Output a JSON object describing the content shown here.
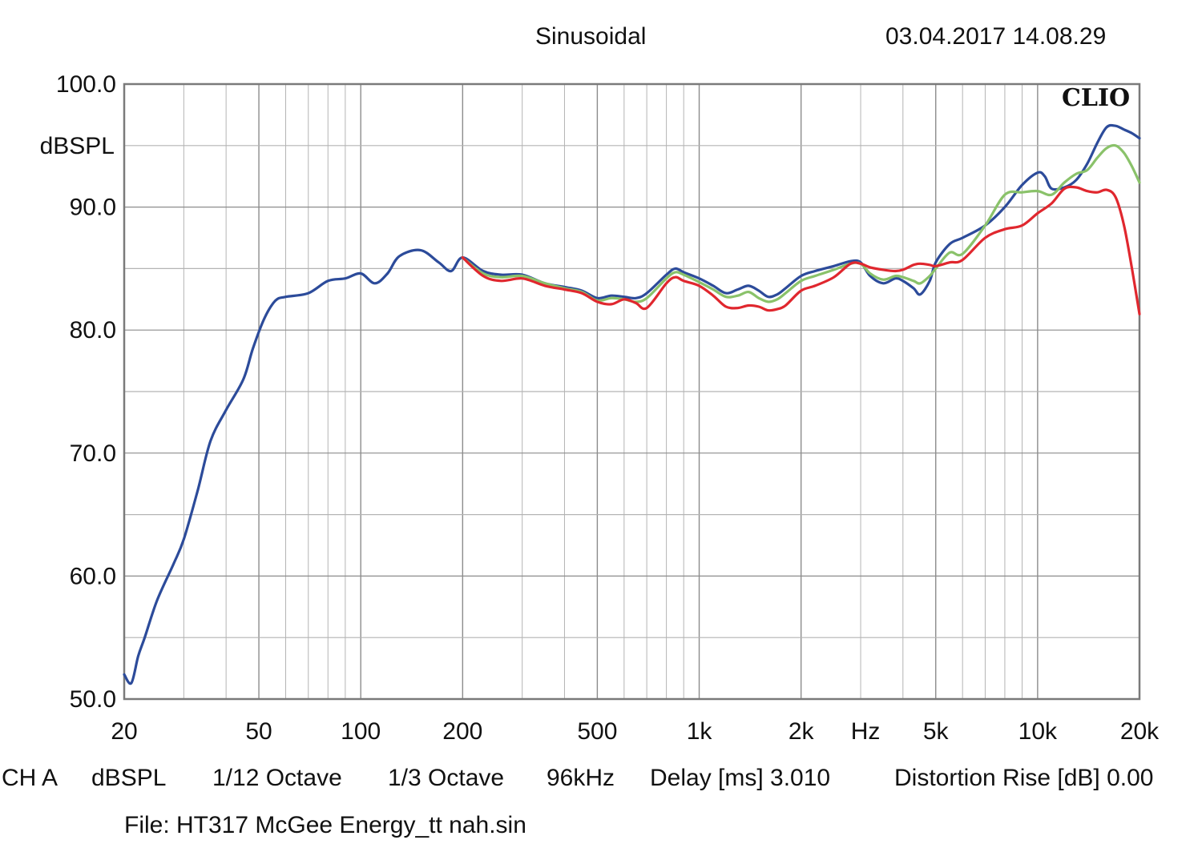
{
  "header": {
    "mode": "Sinusoidal",
    "timestamp": "03.04.2017 14.08.29",
    "brand": "CLIO"
  },
  "footer": {
    "channel": "CH A",
    "unit": "dBSPL",
    "resolution": "1/12 Octave",
    "smoothing": "1/3 Octave",
    "sample_rate": "96kHz",
    "delay": "Delay [ms] 3.010",
    "distortion": "Distortion Rise [dB] 0.00",
    "file": "File: HT317 McGee Energy_tt nah.sin"
  },
  "chart_data": {
    "type": "line",
    "title": "",
    "xlabel": "Hz",
    "ylabel": "dBSPL",
    "xscale": "log",
    "xlim": [
      20,
      20000
    ],
    "ylim": [
      50,
      100
    ],
    "x_ticks": [
      20,
      50,
      100,
      200,
      500,
      1000,
      2000,
      5000,
      10000,
      20000
    ],
    "x_tick_labels": [
      "20",
      "50",
      "100",
      "200",
      "500",
      "1k",
      "2k",
      "5k",
      "10k",
      "20k"
    ],
    "y_ticks": [
      50,
      60,
      70,
      80,
      90,
      100
    ],
    "y_tick_labels": [
      "50.0",
      "60.0",
      "70.0",
      "80.0",
      "90.0",
      "100.0"
    ],
    "grid": true,
    "legend": "none",
    "series": [
      {
        "color": "#2c4b9a",
        "points": [
          [
            20,
            52.0
          ],
          [
            21,
            51.3
          ],
          [
            22,
            53.5
          ],
          [
            23,
            55.0
          ],
          [
            25,
            58.0
          ],
          [
            28,
            61.0
          ],
          [
            30,
            63.0
          ],
          [
            33,
            67.0
          ],
          [
            36,
            71.0
          ],
          [
            40,
            73.5
          ],
          [
            45,
            76.0
          ],
          [
            48,
            78.5
          ],
          [
            52,
            81.0
          ],
          [
            56,
            82.4
          ],
          [
            60,
            82.7
          ],
          [
            70,
            83.0
          ],
          [
            80,
            84.0
          ],
          [
            90,
            84.2
          ],
          [
            100,
            84.6
          ],
          [
            110,
            83.8
          ],
          [
            120,
            84.6
          ],
          [
            130,
            86.0
          ],
          [
            150,
            86.5
          ],
          [
            170,
            85.5
          ],
          [
            185,
            84.8
          ],
          [
            200,
            85.9
          ],
          [
            230,
            84.8
          ],
          [
            260,
            84.5
          ],
          [
            300,
            84.5
          ],
          [
            350,
            83.8
          ],
          [
            400,
            83.5
          ],
          [
            450,
            83.2
          ],
          [
            500,
            82.6
          ],
          [
            550,
            82.8
          ],
          [
            600,
            82.7
          ],
          [
            650,
            82.6
          ],
          [
            700,
            83.0
          ],
          [
            800,
            84.5
          ],
          [
            850,
            85.0
          ],
          [
            900,
            84.7
          ],
          [
            1000,
            84.2
          ],
          [
            1100,
            83.6
          ],
          [
            1200,
            83.0
          ],
          [
            1300,
            83.3
          ],
          [
            1400,
            83.6
          ],
          [
            1500,
            83.2
          ],
          [
            1600,
            82.7
          ],
          [
            1700,
            82.9
          ],
          [
            1800,
            83.4
          ],
          [
            2000,
            84.4
          ],
          [
            2200,
            84.8
          ],
          [
            2500,
            85.2
          ],
          [
            2800,
            85.6
          ],
          [
            3000,
            85.5
          ],
          [
            3200,
            84.4
          ],
          [
            3500,
            83.8
          ],
          [
            3800,
            84.2
          ],
          [
            4000,
            84.0
          ],
          [
            4300,
            83.4
          ],
          [
            4500,
            82.9
          ],
          [
            4800,
            84.0
          ],
          [
            5000,
            85.5
          ],
          [
            5500,
            87.0
          ],
          [
            6000,
            87.5
          ],
          [
            7000,
            88.5
          ],
          [
            8000,
            90.0
          ],
          [
            9000,
            91.8
          ],
          [
            10000,
            92.8
          ],
          [
            10500,
            92.5
          ],
          [
            11000,
            91.5
          ],
          [
            12000,
            91.6
          ],
          [
            13000,
            92.2
          ],
          [
            14000,
            93.5
          ],
          [
            15000,
            95.2
          ],
          [
            16000,
            96.5
          ],
          [
            17000,
            96.6
          ],
          [
            18000,
            96.3
          ],
          [
            19000,
            96.0
          ],
          [
            20000,
            95.6
          ]
        ]
      },
      {
        "color": "#8ac26a",
        "points": [
          [
            200,
            85.9
          ],
          [
            230,
            84.6
          ],
          [
            260,
            84.3
          ],
          [
            300,
            84.4
          ],
          [
            350,
            83.8
          ],
          [
            400,
            83.4
          ],
          [
            450,
            83.1
          ],
          [
            500,
            82.4
          ],
          [
            550,
            82.6
          ],
          [
            600,
            82.5
          ],
          [
            650,
            82.3
          ],
          [
            700,
            82.6
          ],
          [
            800,
            84.2
          ],
          [
            850,
            84.7
          ],
          [
            900,
            84.5
          ],
          [
            1000,
            83.9
          ],
          [
            1100,
            83.3
          ],
          [
            1200,
            82.7
          ],
          [
            1300,
            82.8
          ],
          [
            1400,
            83.1
          ],
          [
            1500,
            82.6
          ],
          [
            1600,
            82.3
          ],
          [
            1700,
            82.5
          ],
          [
            1800,
            83.0
          ],
          [
            2000,
            84.0
          ],
          [
            2200,
            84.4
          ],
          [
            2500,
            84.9
          ],
          [
            2800,
            85.4
          ],
          [
            3000,
            85.4
          ],
          [
            3200,
            84.6
          ],
          [
            3500,
            84.1
          ],
          [
            3800,
            84.4
          ],
          [
            4000,
            84.3
          ],
          [
            4300,
            84.0
          ],
          [
            4500,
            83.8
          ],
          [
            4800,
            84.4
          ],
          [
            5000,
            85.0
          ],
          [
            5500,
            86.3
          ],
          [
            6000,
            86.2
          ],
          [
            7000,
            88.5
          ],
          [
            8000,
            91.0
          ],
          [
            9000,
            91.2
          ],
          [
            10000,
            91.3
          ],
          [
            11000,
            91.0
          ],
          [
            12000,
            92.0
          ],
          [
            13000,
            92.7
          ],
          [
            14000,
            93.0
          ],
          [
            15000,
            94.0
          ],
          [
            16000,
            94.8
          ],
          [
            17000,
            95.0
          ],
          [
            18000,
            94.4
          ],
          [
            19000,
            93.3
          ],
          [
            20000,
            92.0
          ]
        ]
      },
      {
        "color": "#e0272e",
        "points": [
          [
            200,
            85.9
          ],
          [
            230,
            84.4
          ],
          [
            260,
            84.0
          ],
          [
            300,
            84.2
          ],
          [
            350,
            83.6
          ],
          [
            400,
            83.3
          ],
          [
            450,
            83.0
          ],
          [
            500,
            82.3
          ],
          [
            550,
            82.1
          ],
          [
            600,
            82.5
          ],
          [
            650,
            82.2
          ],
          [
            700,
            81.8
          ],
          [
            800,
            83.8
          ],
          [
            850,
            84.3
          ],
          [
            900,
            84.0
          ],
          [
            1000,
            83.6
          ],
          [
            1100,
            82.8
          ],
          [
            1200,
            81.9
          ],
          [
            1300,
            81.8
          ],
          [
            1400,
            82.0
          ],
          [
            1500,
            81.9
          ],
          [
            1600,
            81.6
          ],
          [
            1700,
            81.7
          ],
          [
            1800,
            82.0
          ],
          [
            2000,
            83.2
          ],
          [
            2200,
            83.6
          ],
          [
            2500,
            84.3
          ],
          [
            2800,
            85.4
          ],
          [
            3000,
            85.4
          ],
          [
            3200,
            85.1
          ],
          [
            3500,
            84.9
          ],
          [
            3800,
            84.8
          ],
          [
            4000,
            84.9
          ],
          [
            4300,
            85.3
          ],
          [
            4500,
            85.4
          ],
          [
            4800,
            85.3
          ],
          [
            5000,
            85.2
          ],
          [
            5500,
            85.5
          ],
          [
            6000,
            85.7
          ],
          [
            7000,
            87.5
          ],
          [
            8000,
            88.2
          ],
          [
            9000,
            88.5
          ],
          [
            10000,
            89.5
          ],
          [
            11000,
            90.3
          ],
          [
            12000,
            91.5
          ],
          [
            13000,
            91.6
          ],
          [
            14000,
            91.3
          ],
          [
            15000,
            91.2
          ],
          [
            16000,
            91.4
          ],
          [
            17000,
            90.8
          ],
          [
            18000,
            88.5
          ],
          [
            19000,
            85.0
          ],
          [
            20000,
            81.3
          ]
        ]
      }
    ]
  }
}
